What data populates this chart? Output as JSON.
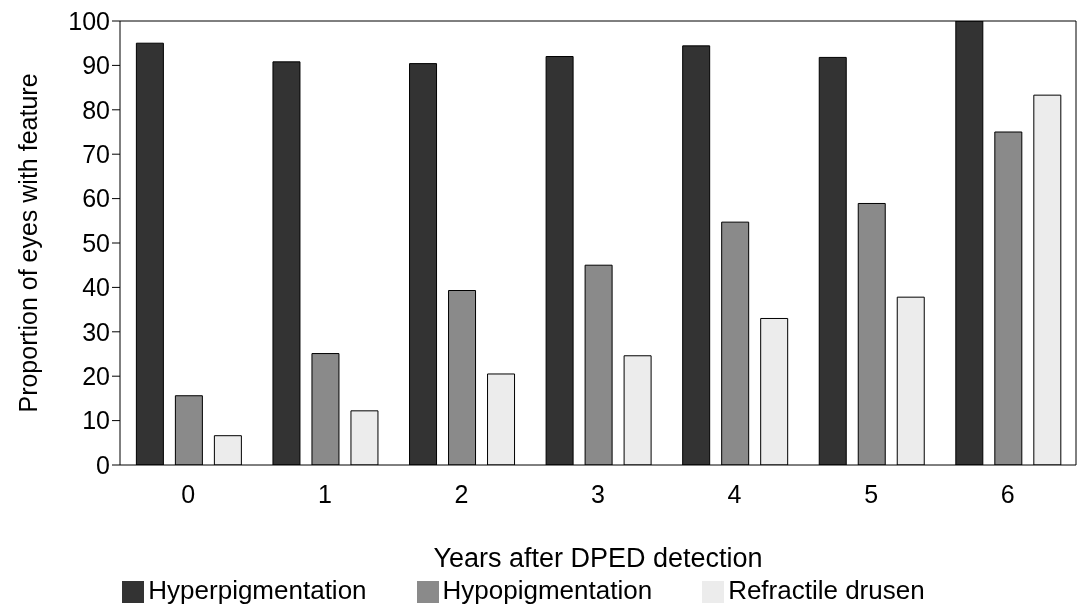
{
  "chart_data": {
    "type": "bar",
    "xlabel": "Years after DPED detection",
    "ylabel": "Proportion of eyes with feature",
    "categories": [
      "0",
      "1",
      "2",
      "3",
      "4",
      "5",
      "6"
    ],
    "series": [
      {
        "name": "Hyperpigmentation",
        "color": "#333333",
        "values": [
          95,
          90.8,
          90.4,
          92,
          94.4,
          91.8,
          100
        ]
      },
      {
        "name": "Hypopigmentation",
        "color": "#8a8a8a",
        "values": [
          15.6,
          25.1,
          39.3,
          45,
          54.7,
          58.9,
          75
        ]
      },
      {
        "name": "Refractile drusen",
        "color": "#ececec",
        "values": [
          6.6,
          12.2,
          20.5,
          24.6,
          33,
          37.8,
          83.3
        ]
      }
    ],
    "ylim": [
      0,
      100
    ],
    "yticks": [
      0,
      10,
      20,
      30,
      40,
      50,
      60,
      70,
      80,
      90,
      100
    ],
    "grid": false,
    "legend": "bottom"
  }
}
